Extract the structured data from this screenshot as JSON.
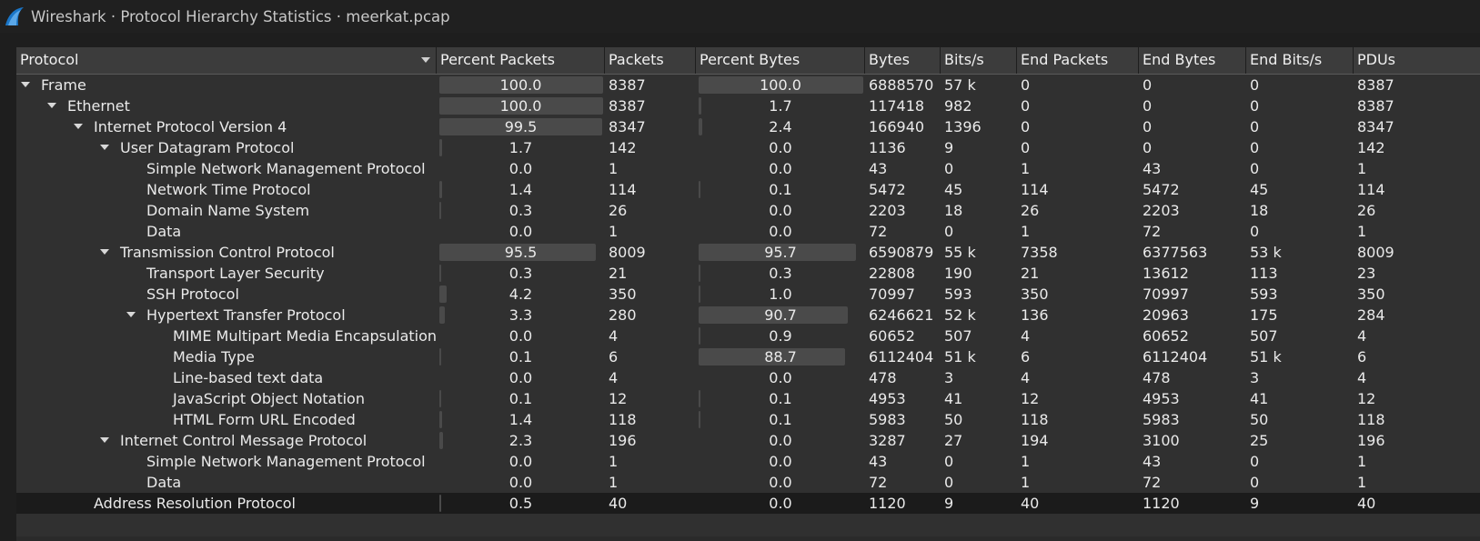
{
  "window": {
    "title": "Wireshark · Protocol Hierarchy Statistics · meerkat.pcap"
  },
  "colors": {
    "background": "#303030",
    "header": "#3c3c3c",
    "bar": "#4a4a4a",
    "selected_row": "#1b1b1b"
  },
  "columns": [
    "Protocol",
    "Percent Packets",
    "Packets",
    "Percent Bytes",
    "Bytes",
    "Bits/s",
    "End Packets",
    "End Bytes",
    "End Bits/s",
    "PDUs"
  ],
  "rows": [
    {
      "protocol": "Frame",
      "level": 0,
      "expanded": true,
      "pct_packets": "100.0",
      "packets": "8387",
      "pct_bytes": "100.0",
      "bytes": "6888570",
      "bits_s": "57 k",
      "end_packets": "0",
      "end_bytes": "0",
      "end_bits_s": "0",
      "pdus": "8387"
    },
    {
      "protocol": "Ethernet",
      "level": 1,
      "expanded": true,
      "pct_packets": "100.0",
      "packets": "8387",
      "pct_bytes": "1.7",
      "bytes": "117418",
      "bits_s": "982",
      "end_packets": "0",
      "end_bytes": "0",
      "end_bits_s": "0",
      "pdus": "8387"
    },
    {
      "protocol": "Internet Protocol Version 4",
      "level": 2,
      "expanded": true,
      "pct_packets": "99.5",
      "packets": "8347",
      "pct_bytes": "2.4",
      "bytes": "166940",
      "bits_s": "1396",
      "end_packets": "0",
      "end_bytes": "0",
      "end_bits_s": "0",
      "pdus": "8347"
    },
    {
      "protocol": "User Datagram Protocol",
      "level": 3,
      "expanded": true,
      "pct_packets": "1.7",
      "packets": "142",
      "pct_bytes": "0.0",
      "bytes": "1136",
      "bits_s": "9",
      "end_packets": "0",
      "end_bytes": "0",
      "end_bits_s": "0",
      "pdus": "142"
    },
    {
      "protocol": "Simple Network Management Protocol",
      "level": 4,
      "expanded": false,
      "pct_packets": "0.0",
      "packets": "1",
      "pct_bytes": "0.0",
      "bytes": "43",
      "bits_s": "0",
      "end_packets": "1",
      "end_bytes": "43",
      "end_bits_s": "0",
      "pdus": "1"
    },
    {
      "protocol": "Network Time Protocol",
      "level": 4,
      "expanded": false,
      "pct_packets": "1.4",
      "packets": "114",
      "pct_bytes": "0.1",
      "bytes": "5472",
      "bits_s": "45",
      "end_packets": "114",
      "end_bytes": "5472",
      "end_bits_s": "45",
      "pdus": "114"
    },
    {
      "protocol": "Domain Name System",
      "level": 4,
      "expanded": false,
      "pct_packets": "0.3",
      "packets": "26",
      "pct_bytes": "0.0",
      "bytes": "2203",
      "bits_s": "18",
      "end_packets": "26",
      "end_bytes": "2203",
      "end_bits_s": "18",
      "pdus": "26"
    },
    {
      "protocol": "Data",
      "level": 4,
      "expanded": false,
      "pct_packets": "0.0",
      "packets": "1",
      "pct_bytes": "0.0",
      "bytes": "72",
      "bits_s": "0",
      "end_packets": "1",
      "end_bytes": "72",
      "end_bits_s": "0",
      "pdus": "1"
    },
    {
      "protocol": "Transmission Control Protocol",
      "level": 3,
      "expanded": true,
      "pct_packets": "95.5",
      "packets": "8009",
      "pct_bytes": "95.7",
      "bytes": "6590879",
      "bits_s": "55 k",
      "end_packets": "7358",
      "end_bytes": "6377563",
      "end_bits_s": "53 k",
      "pdus": "8009"
    },
    {
      "protocol": "Transport Layer Security",
      "level": 4,
      "expanded": false,
      "pct_packets": "0.3",
      "packets": "21",
      "pct_bytes": "0.3",
      "bytes": "22808",
      "bits_s": "190",
      "end_packets": "21",
      "end_bytes": "13612",
      "end_bits_s": "113",
      "pdus": "23"
    },
    {
      "protocol": "SSH Protocol",
      "level": 4,
      "expanded": false,
      "pct_packets": "4.2",
      "packets": "350",
      "pct_bytes": "1.0",
      "bytes": "70997",
      "bits_s": "593",
      "end_packets": "350",
      "end_bytes": "70997",
      "end_bits_s": "593",
      "pdus": "350"
    },
    {
      "protocol": "Hypertext Transfer Protocol",
      "level": 4,
      "expanded": true,
      "pct_packets": "3.3",
      "packets": "280",
      "pct_bytes": "90.7",
      "bytes": "6246621",
      "bits_s": "52 k",
      "end_packets": "136",
      "end_bytes": "20963",
      "end_bits_s": "175",
      "pdus": "284"
    },
    {
      "protocol": "MIME Multipart Media Encapsulation",
      "level": 5,
      "expanded": false,
      "pct_packets": "0.0",
      "packets": "4",
      "pct_bytes": "0.9",
      "bytes": "60652",
      "bits_s": "507",
      "end_packets": "4",
      "end_bytes": "60652",
      "end_bits_s": "507",
      "pdus": "4"
    },
    {
      "protocol": "Media Type",
      "level": 5,
      "expanded": false,
      "pct_packets": "0.1",
      "packets": "6",
      "pct_bytes": "88.7",
      "bytes": "6112404",
      "bits_s": "51 k",
      "end_packets": "6",
      "end_bytes": "6112404",
      "end_bits_s": "51 k",
      "pdus": "6"
    },
    {
      "protocol": "Line-based text data",
      "level": 5,
      "expanded": false,
      "pct_packets": "0.0",
      "packets": "4",
      "pct_bytes": "0.0",
      "bytes": "478",
      "bits_s": "3",
      "end_packets": "4",
      "end_bytes": "478",
      "end_bits_s": "3",
      "pdus": "4"
    },
    {
      "protocol": "JavaScript Object Notation",
      "level": 5,
      "expanded": false,
      "pct_packets": "0.1",
      "packets": "12",
      "pct_bytes": "0.1",
      "bytes": "4953",
      "bits_s": "41",
      "end_packets": "12",
      "end_bytes": "4953",
      "end_bits_s": "41",
      "pdus": "12"
    },
    {
      "protocol": "HTML Form URL Encoded",
      "level": 5,
      "expanded": false,
      "pct_packets": "1.4",
      "packets": "118",
      "pct_bytes": "0.1",
      "bytes": "5983",
      "bits_s": "50",
      "end_packets": "118",
      "end_bytes": "5983",
      "end_bits_s": "50",
      "pdus": "118"
    },
    {
      "protocol": "Internet Control Message Protocol",
      "level": 3,
      "expanded": true,
      "pct_packets": "2.3",
      "packets": "196",
      "pct_bytes": "0.0",
      "bytes": "3287",
      "bits_s": "27",
      "end_packets": "194",
      "end_bytes": "3100",
      "end_bits_s": "25",
      "pdus": "196"
    },
    {
      "protocol": "Simple Network Management Protocol",
      "level": 4,
      "expanded": false,
      "pct_packets": "0.0",
      "packets": "1",
      "pct_bytes": "0.0",
      "bytes": "43",
      "bits_s": "0",
      "end_packets": "1",
      "end_bytes": "43",
      "end_bits_s": "0",
      "pdus": "1"
    },
    {
      "protocol": "Data",
      "level": 4,
      "expanded": false,
      "pct_packets": "0.0",
      "packets": "1",
      "pct_bytes": "0.0",
      "bytes": "72",
      "bits_s": "0",
      "end_packets": "1",
      "end_bytes": "72",
      "end_bits_s": "0",
      "pdus": "1"
    },
    {
      "protocol": "Address Resolution Protocol",
      "level": 2,
      "expanded": false,
      "selected": true,
      "pct_packets": "0.5",
      "packets": "40",
      "pct_bytes": "0.0",
      "bytes": "1120",
      "bits_s": "9",
      "end_packets": "40",
      "end_bytes": "1120",
      "end_bits_s": "9",
      "pdus": "40"
    }
  ]
}
